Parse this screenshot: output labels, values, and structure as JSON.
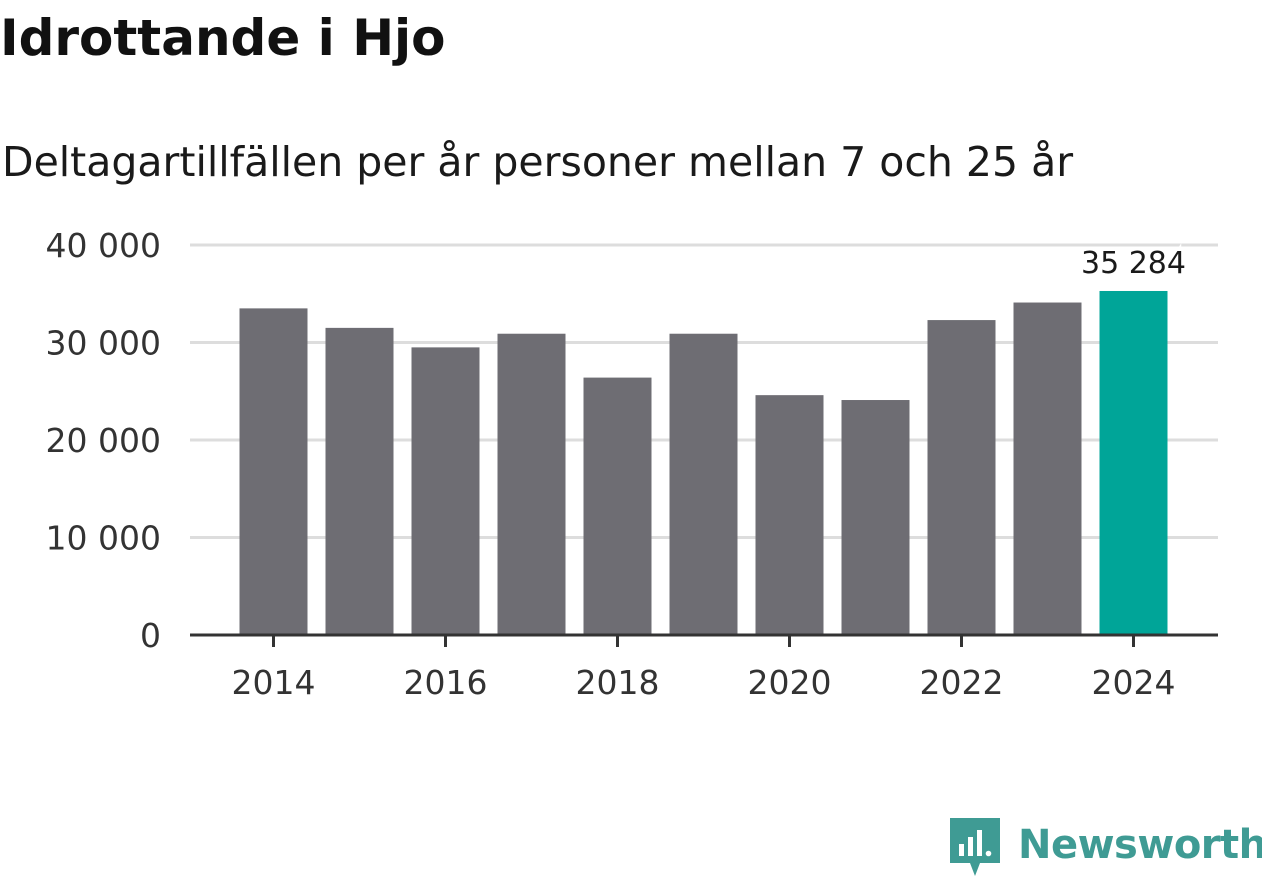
{
  "title": "Idrottande i Hjo",
  "subtitle": "Deltagartillfällen per år personer mellan 7 och 25 år",
  "brand": {
    "name": "Newsworthy",
    "icon": "bar-chart-icon",
    "color": "#3f9b94"
  },
  "colors": {
    "bar": "#6e6d73",
    "highlight": "#00a598",
    "grid": "#dddddd",
    "axis": "#333333",
    "text": "#333333"
  },
  "chart_data": {
    "type": "bar",
    "categories": [
      "2014",
      "2015",
      "2016",
      "2017",
      "2018",
      "2019",
      "2020",
      "2021",
      "2022",
      "2023",
      "2024"
    ],
    "values": [
      33500,
      31500,
      29500,
      30900,
      26400,
      30900,
      24600,
      24100,
      32300,
      34100,
      35284
    ],
    "highlight_index": 10,
    "data_labels": [
      {
        "index": 10,
        "text": "35 284"
      }
    ],
    "x_tick_labels": [
      "2014",
      "2016",
      "2018",
      "2020",
      "2022",
      "2024"
    ],
    "y_ticks": [
      {
        "value": 0,
        "label": "0"
      },
      {
        "value": 10000,
        "label": "10 000"
      },
      {
        "value": 20000,
        "label": "20 000"
      },
      {
        "value": 30000,
        "label": "30 000"
      },
      {
        "value": 40000,
        "label": "40 000"
      }
    ],
    "ylim": [
      0,
      40000
    ],
    "grid": true,
    "xlabel": "",
    "ylabel": ""
  }
}
